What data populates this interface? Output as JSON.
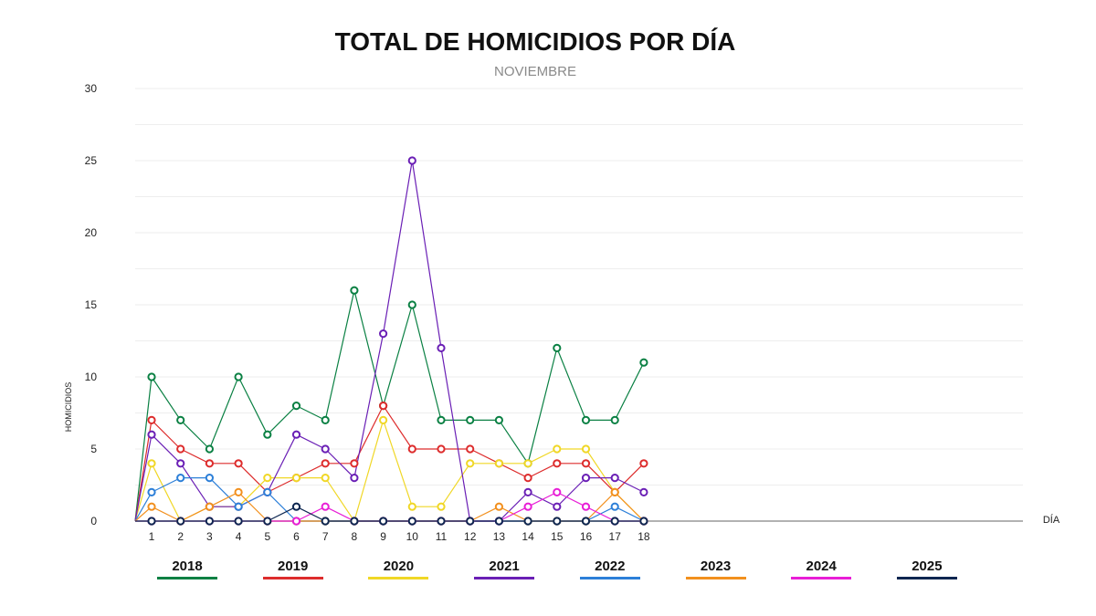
{
  "header": {
    "title": "TOTAL DE HOMICIDIOS POR DÍA",
    "subtitle": "NOVIEMBRE"
  },
  "colors": {
    "grid": "#eeeeee",
    "axis": "#999999",
    "text": "#222222"
  },
  "chart_data": {
    "type": "line",
    "title": "TOTAL DE HOMICIDIOS POR DÍA",
    "subtitle": "NOVIEMBRE",
    "xlabel": "DÍA",
    "ylabel": "HOMICIDIOS",
    "x": [
      1,
      2,
      3,
      4,
      5,
      6,
      7,
      8,
      9,
      10,
      11,
      12,
      13,
      14,
      15,
      16,
      17,
      18
    ],
    "ylim": [
      0,
      30
    ],
    "yticks": [
      0,
      5,
      10,
      15,
      20,
      25,
      30
    ],
    "grid": true,
    "legend_position": "bottom",
    "series": [
      {
        "name": "2018",
        "color": "#0a8043",
        "values": [
          10,
          7,
          5,
          10,
          6,
          8,
          7,
          16,
          8,
          15,
          7,
          7,
          7,
          4,
          12,
          7,
          7,
          11
        ]
      },
      {
        "name": "2019",
        "color": "#dd2c2c",
        "values": [
          7,
          5,
          4,
          4,
          2,
          3,
          4,
          4,
          8,
          5,
          5,
          5,
          4,
          3,
          4,
          4,
          2,
          4
        ]
      },
      {
        "name": "2020",
        "color": "#f0d726",
        "values": [
          4,
          0,
          1,
          1,
          3,
          3,
          3,
          0,
          7,
          1,
          1,
          4,
          4,
          4,
          5,
          5,
          2,
          0
        ]
      },
      {
        "name": "2021",
        "color": "#6a1fb5",
        "values": [
          6,
          4,
          1,
          1,
          2,
          6,
          5,
          3,
          13,
          25,
          12,
          0,
          0,
          2,
          1,
          3,
          3,
          2
        ]
      },
      {
        "name": "2022",
        "color": "#2c7fd8",
        "values": [
          2,
          3,
          3,
          1,
          2,
          0,
          0,
          0,
          0,
          0,
          0,
          0,
          0,
          0,
          0,
          0,
          1,
          0
        ]
      },
      {
        "name": "2023",
        "color": "#f2901e",
        "values": [
          1,
          0,
          1,
          2,
          0,
          0,
          0,
          0,
          0,
          0,
          0,
          0,
          1,
          0,
          0,
          0,
          2,
          0
        ]
      },
      {
        "name": "2024",
        "color": "#e81ed6",
        "values": [
          0,
          0,
          0,
          0,
          0,
          0,
          1,
          0,
          0,
          0,
          0,
          0,
          0,
          1,
          2,
          1,
          0,
          0
        ]
      },
      {
        "name": "2025",
        "color": "#0d2650",
        "values": [
          0,
          0,
          0,
          0,
          0,
          1,
          0,
          0,
          0,
          0,
          0,
          0,
          0,
          0,
          0,
          0,
          0,
          0
        ]
      }
    ]
  }
}
